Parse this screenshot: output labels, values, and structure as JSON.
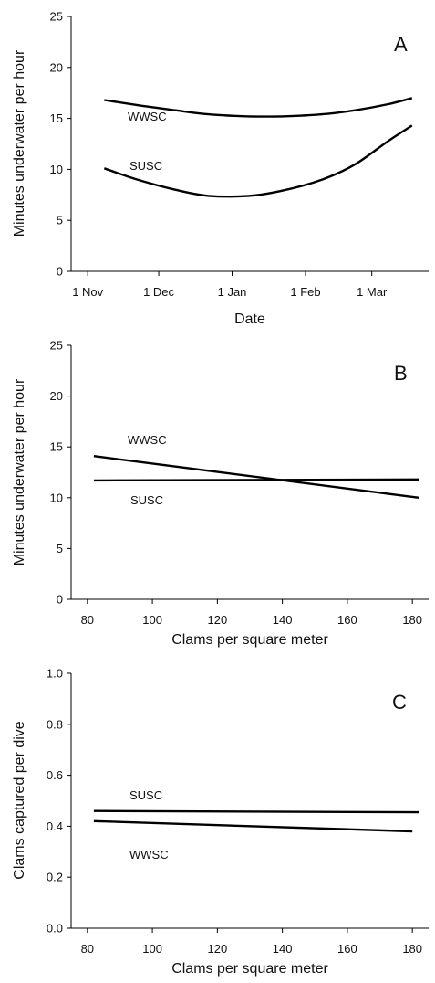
{
  "chart_data": [
    {
      "panel": "A",
      "type": "line",
      "xlabel": "Date",
      "ylabel": "Minutes underwater per hour",
      "ylim": [
        0,
        25
      ],
      "yticks": [
        0,
        5,
        10,
        15,
        20,
        25
      ],
      "xticks": [
        {
          "label": "1 Nov",
          "value": "2000-11-01"
        },
        {
          "label": "1 Dec",
          "value": "2000-12-01"
        },
        {
          "label": "1 Jan",
          "value": "2001-01-01"
        },
        {
          "label": "1 Feb",
          "value": "2001-02-01"
        },
        {
          "label": "1 Mar",
          "value": "2001-03-01"
        }
      ],
      "xlim": [
        "2000-10-25",
        "2001-03-25"
      ],
      "grid": false,
      "series": [
        {
          "name": "WWSC",
          "x": [
            "2000-11-08",
            "2000-11-22",
            "2000-12-08",
            "2000-12-22",
            "2001-01-08",
            "2001-01-22",
            "2001-02-08",
            "2001-02-22",
            "2001-03-08",
            "2001-03-18"
          ],
          "values": [
            16.8,
            16.3,
            15.8,
            15.4,
            15.2,
            15.2,
            15.4,
            15.8,
            16.4,
            17.0
          ]
        },
        {
          "name": "SUSC",
          "x": [
            "2000-11-08",
            "2000-11-22",
            "2000-12-08",
            "2000-12-22",
            "2001-01-08",
            "2001-01-22",
            "2001-02-08",
            "2001-02-22",
            "2001-03-08",
            "2001-03-18"
          ],
          "values": [
            10.1,
            9.0,
            8.0,
            7.4,
            7.4,
            7.9,
            9.0,
            10.5,
            12.8,
            14.3
          ]
        }
      ]
    },
    {
      "panel": "B",
      "type": "line",
      "xlabel": "Clams per square meter",
      "ylabel": "Minutes underwater per hour",
      "ylim": [
        0,
        25
      ],
      "xlim": [
        75,
        185
      ],
      "yticks": [
        0,
        5,
        10,
        15,
        20,
        25
      ],
      "xticks": [
        80,
        100,
        120,
        140,
        160,
        180
      ],
      "grid": false,
      "series": [
        {
          "name": "WWSC",
          "x": [
            82,
            182
          ],
          "values": [
            14.1,
            10.0
          ]
        },
        {
          "name": "SUSC",
          "x": [
            82,
            182
          ],
          "values": [
            11.7,
            11.8
          ]
        }
      ]
    },
    {
      "panel": "C",
      "type": "line",
      "xlabel": "Clams per square meter",
      "ylabel": "Clams captured per dive",
      "ylim": [
        0.0,
        1.0
      ],
      "xlim": [
        75,
        185
      ],
      "yticks": [
        "0.0",
        "0.2",
        "0.4",
        "0.6",
        "0.8",
        "1.0"
      ],
      "xticks": [
        80,
        100,
        120,
        140,
        160,
        180
      ],
      "grid": false,
      "series": [
        {
          "name": "SUSC",
          "x": [
            82,
            182
          ],
          "values": [
            0.46,
            0.455
          ]
        },
        {
          "name": "WWSC",
          "x": [
            82,
            180
          ],
          "values": [
            0.42,
            0.38
          ]
        }
      ]
    }
  ]
}
